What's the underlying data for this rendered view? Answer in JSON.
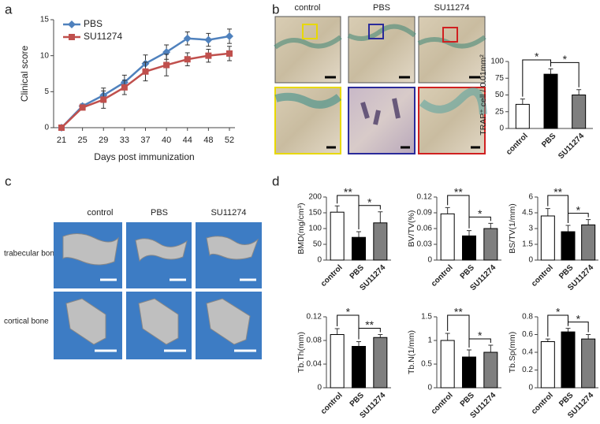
{
  "panel_labels": [
    "a",
    "b",
    "c",
    "d"
  ],
  "images": {
    "b": {
      "columns": [
        "control",
        "PBS",
        "SU11274"
      ]
    },
    "c": {
      "columns": [
        "control",
        "PBS",
        "SU11274"
      ],
      "rows": [
        "trabecular bone",
        "cortical bone"
      ]
    }
  },
  "chart_data": [
    {
      "type": "line",
      "xlabel": "Days post immunization",
      "ylabel": "Clinical score",
      "categories": [
        "21",
        "25",
        "29",
        "33",
        "37",
        "40",
        "44",
        "48",
        "52"
      ],
      "ylim": [
        0,
        15
      ],
      "yticks": [
        0,
        5,
        10,
        15
      ],
      "series": [
        {
          "name": "PBS",
          "color": "#4f81bd",
          "marker": "diamond",
          "values": [
            0,
            3.0,
            4.5,
            6.3,
            8.9,
            10.5,
            12.4,
            12.2,
            12.7
          ],
          "errors": [
            0,
            0.3,
            1.0,
            1.0,
            1.2,
            1.0,
            0.9,
            0.9,
            1.0
          ]
        },
        {
          "name": "SU11274",
          "color": "#c0504d",
          "marker": "square",
          "values": [
            0,
            2.8,
            3.9,
            5.6,
            7.8,
            8.7,
            9.5,
            10.0,
            10.3
          ],
          "errors": [
            0,
            0.3,
            1.2,
            1.0,
            1.3,
            1.5,
            0.9,
            0.9,
            1.0
          ]
        }
      ]
    },
    {
      "type": "bar",
      "ylabel": "TRAP⁺ cell / 0.01mm²",
      "categories": [
        "control",
        "PBS",
        "SU11274"
      ],
      "values": [
        36,
        81,
        50
      ],
      "errors": [
        8,
        8,
        8
      ],
      "colors": [
        "#ffffff",
        "#000000",
        "#7f7f7f"
      ],
      "ylim": [
        0,
        100
      ],
      "yticks": [
        0,
        25,
        50,
        75,
        100
      ],
      "significance": [
        {
          "label": "*",
          "between": [
            "control",
            "PBS"
          ]
        },
        {
          "label": "*",
          "between": [
            "PBS",
            "SU11274"
          ]
        }
      ]
    },
    {
      "type": "bar",
      "ylabel": "BMD(mg/cm³)",
      "categories": [
        "control",
        "PBS",
        "SU11274"
      ],
      "values": [
        152,
        72,
        118
      ],
      "errors": [
        20,
        18,
        35
      ],
      "colors": [
        "#ffffff",
        "#000000",
        "#7f7f7f"
      ],
      "ylim": [
        0,
        200
      ],
      "yticks": [
        0,
        50,
        100,
        150,
        200
      ],
      "significance": [
        {
          "label": "**",
          "between": [
            "control",
            "PBS"
          ]
        },
        {
          "label": "*",
          "between": [
            "PBS",
            "SU11274"
          ]
        }
      ]
    },
    {
      "type": "bar",
      "ylabel": "BV/TV(%)",
      "categories": [
        "control",
        "PBS",
        "SU11274"
      ],
      "values": [
        0.088,
        0.046,
        0.06
      ],
      "errors": [
        0.012,
        0.01,
        0.01
      ],
      "colors": [
        "#ffffff",
        "#000000",
        "#7f7f7f"
      ],
      "ylim": [
        0,
        0.12
      ],
      "yticks": [
        0,
        0.03,
        0.06,
        0.09,
        0.12
      ],
      "significance": [
        {
          "label": "**",
          "between": [
            "control",
            "PBS"
          ]
        },
        {
          "label": "*",
          "between": [
            "PBS",
            "SU11274"
          ]
        }
      ]
    },
    {
      "type": "bar",
      "ylabel": "BS/TV(1/mm)",
      "categories": [
        "control",
        "PBS",
        "SU11274"
      ],
      "values": [
        4.2,
        2.7,
        3.35
      ],
      "errors": [
        0.7,
        0.6,
        0.5
      ],
      "colors": [
        "#ffffff",
        "#000000",
        "#7f7f7f"
      ],
      "ylim": [
        0,
        6
      ],
      "yticks": [
        0,
        1.5,
        3,
        4.5,
        6
      ],
      "significance": [
        {
          "label": "**",
          "between": [
            "control",
            "PBS"
          ]
        },
        {
          "label": "*",
          "between": [
            "PBS",
            "SU11274"
          ]
        }
      ]
    },
    {
      "type": "bar",
      "ylabel": "Tb.Th(mm)",
      "categories": [
        "control",
        "PBS",
        "SU11274"
      ],
      "values": [
        0.09,
        0.07,
        0.085
      ],
      "errors": [
        0.01,
        0.008,
        0.005
      ],
      "colors": [
        "#ffffff",
        "#000000",
        "#7f7f7f"
      ],
      "ylim": [
        0,
        0.12
      ],
      "yticks": [
        0,
        0.04,
        0.08,
        0.12
      ],
      "significance": [
        {
          "label": "*",
          "between": [
            "control",
            "PBS"
          ]
        },
        {
          "label": "**",
          "between": [
            "PBS",
            "SU11274"
          ]
        }
      ]
    },
    {
      "type": "bar",
      "ylabel": "Tb.N(1/mm)",
      "categories": [
        "control",
        "PBS",
        "SU11274"
      ],
      "values": [
        1.0,
        0.65,
        0.75
      ],
      "errors": [
        0.15,
        0.15,
        0.15
      ],
      "colors": [
        "#ffffff",
        "#000000",
        "#7f7f7f"
      ],
      "ylim": [
        0,
        1.5
      ],
      "yticks": [
        0,
        0.5,
        1,
        1.5
      ],
      "significance": [
        {
          "label": "**",
          "between": [
            "control",
            "PBS"
          ]
        },
        {
          "label": "*",
          "between": [
            "PBS",
            "SU11274"
          ]
        }
      ]
    },
    {
      "type": "bar",
      "ylabel": "Tb.Sp(mm)",
      "categories": [
        "control",
        "PBS",
        "SU11274"
      ],
      "values": [
        0.52,
        0.63,
        0.55
      ],
      "errors": [
        0.03,
        0.04,
        0.05
      ],
      "colors": [
        "#ffffff",
        "#000000",
        "#7f7f7f"
      ],
      "ylim": [
        0,
        0.8
      ],
      "yticks": [
        0,
        0.2,
        0.4,
        0.6,
        0.8
      ],
      "significance": [
        {
          "label": "*",
          "between": [
            "control",
            "PBS"
          ]
        },
        {
          "label": "*",
          "between": [
            "PBS",
            "SU11274"
          ]
        }
      ]
    }
  ]
}
